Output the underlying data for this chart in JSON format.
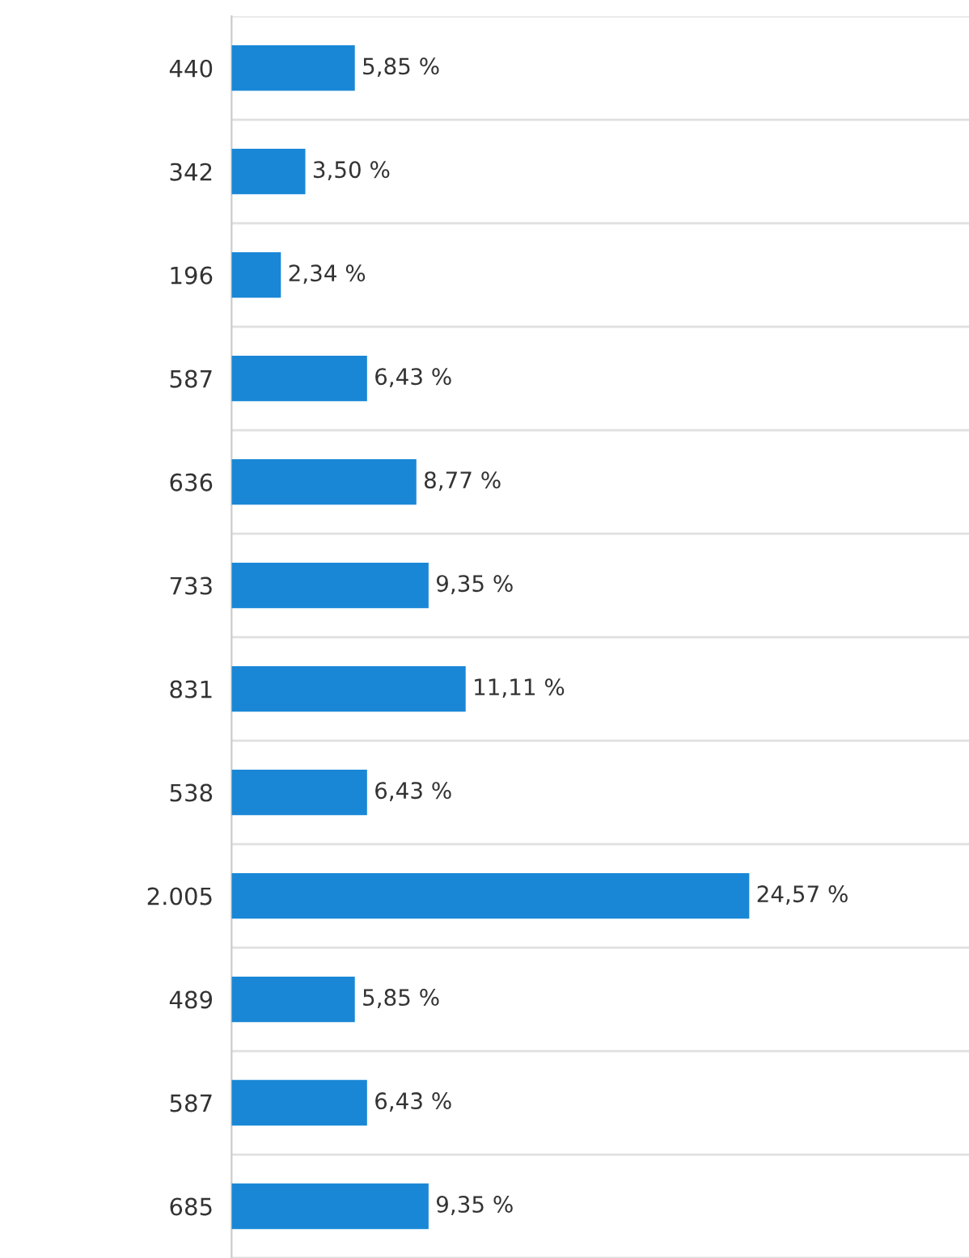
{
  "chart_data": {
    "type": "bar",
    "orientation": "horizontal",
    "categories": [
      "440",
      "342",
      "196",
      "587",
      "636",
      "733",
      "831",
      "538",
      "2.005",
      "489",
      "587",
      "685"
    ],
    "values": [
      5.85,
      3.5,
      2.34,
      6.43,
      8.77,
      9.35,
      11.11,
      6.43,
      24.57,
      5.85,
      6.43,
      9.35
    ],
    "value_labels": [
      "5,85 %",
      "3,50 %",
      "2,34 %",
      "6,43 %",
      "8,77 %",
      "9,35 %",
      "11,11 %",
      "6,43 %",
      "24,57 %",
      "5,85 %",
      "6,43 %",
      "9,35 %"
    ],
    "color": "#1a87d6",
    "xlim": [
      0,
      35
    ],
    "grid": "y",
    "tick_labels": "y"
  }
}
